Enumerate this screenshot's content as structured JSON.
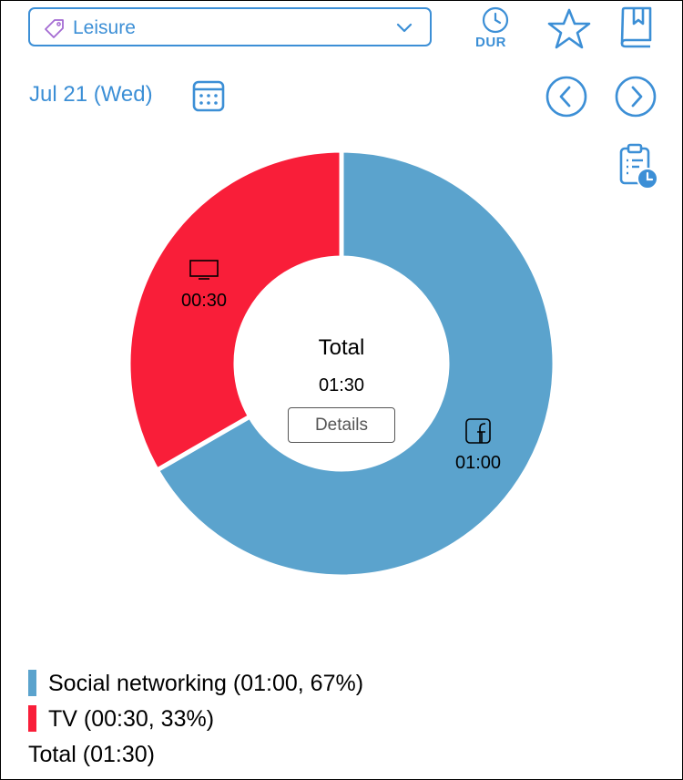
{
  "category": {
    "label": "Leisure"
  },
  "header": {
    "dur_label": "DUR"
  },
  "date": {
    "label": "Jul 21 (Wed)"
  },
  "chart_data": {
    "type": "pie",
    "style": "donut",
    "center_title": "Total",
    "center_value": "01:30",
    "slices": [
      {
        "name": "Social networking",
        "value": 60,
        "time": "01:00",
        "percent": 67,
        "color": "#5ba3cd",
        "icon": "facebook-icon"
      },
      {
        "name": "TV",
        "value": 30,
        "time": "00:30",
        "percent": 33,
        "color": "#f91e39",
        "icon": "tv-icon"
      }
    ]
  },
  "details_button": {
    "label": "Details"
  },
  "legend": {
    "items": [
      {
        "text": "Social networking (01:00, 67%)",
        "color": "#5ba3cd"
      },
      {
        "text": "TV (00:30, 33%)",
        "color": "#f91e39"
      }
    ],
    "total": "Total (01:30)"
  }
}
